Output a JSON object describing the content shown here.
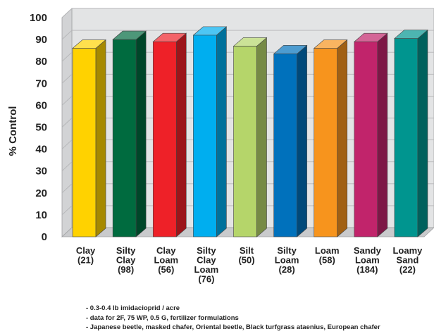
{
  "chart_data": {
    "type": "bar",
    "style": "3d-column",
    "ylabel": "% Control",
    "xlabel": "",
    "ylim": [
      0,
      100
    ],
    "yticks": [
      0,
      10,
      20,
      30,
      40,
      50,
      60,
      70,
      80,
      90,
      100
    ],
    "grid": true,
    "categories": [
      {
        "lines": [
          "Clay",
          "(21)"
        ],
        "value": 86,
        "color": "#FFD200"
      },
      {
        "lines": [
          "Silty",
          "Clay",
          "(98)"
        ],
        "value": 90,
        "color": "#006B3F"
      },
      {
        "lines": [
          "Clay",
          "Loam",
          "(56)"
        ],
        "value": 89,
        "color": "#EE2128"
      },
      {
        "lines": [
          "Silty",
          "Clay",
          "Loam",
          "(76)"
        ],
        "value": 92,
        "color": "#00AEEF"
      },
      {
        "lines": [
          "Silt",
          "(50)"
        ],
        "value": 87,
        "color": "#B5D56A"
      },
      {
        "lines": [
          "Silty",
          "Loam",
          "(28)"
        ],
        "value": 83.5,
        "color": "#0071BC"
      },
      {
        "lines": [
          "Loam",
          "(58)"
        ],
        "value": 86,
        "color": "#F7941D"
      },
      {
        "lines": [
          "Sandy",
          "Loam",
          "(184)"
        ],
        "value": 89,
        "color": "#C1246B"
      },
      {
        "lines": [
          "Loamy",
          "Sand",
          "(22)"
        ],
        "value": 90.5,
        "color": "#00958F"
      }
    ],
    "colors": {
      "wall": "#E3E4E5",
      "floor": "#C9CACC",
      "gridline": "#B4B5B7"
    }
  },
  "notes": [
    "- 0.3-0.4 lb imidacioprid / acre",
    "- data for 2F, 75 WP, 0.5 G, fertilizer formulations",
    "- Japanese beetle, masked chafer, Oriental beetle, Black turfgrass ataenius, European chafer"
  ]
}
